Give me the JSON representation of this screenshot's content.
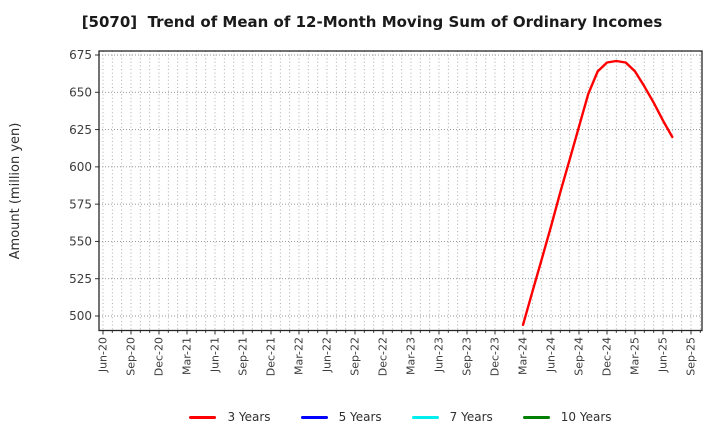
{
  "title": "[5070]  Trend of Mean of 12-Month Moving Sum of Ordinary Incomes",
  "colors": {
    "background": "#ffffff",
    "plot_border": "#262626",
    "grid": "#9a9a9a",
    "tick_text": "#3d3d3d",
    "series_3yr": "#ff0000",
    "series_5yr": "#0000ff",
    "series_7yr": "#00eeee",
    "series_10yr": "#008000"
  },
  "chart_data": {
    "type": "line",
    "title": "[5070]  Trend of Mean of 12-Month Moving Sum of Ordinary Incomes",
    "xlabel": "",
    "ylabel": "Amount (million yen)",
    "ylim": [
      489,
      678
    ],
    "yticks": [
      500,
      525,
      550,
      575,
      600,
      625,
      650,
      675
    ],
    "x_tick_labels": [
      "Jun-20",
      "Sep-20",
      "Dec-20",
      "Mar-21",
      "Jun-21",
      "Sep-21",
      "Dec-21",
      "Mar-22",
      "Jun-22",
      "Sep-22",
      "Dec-22",
      "Mar-23",
      "Jun-23",
      "Sep-23",
      "Dec-23",
      "Mar-24",
      "Jun-24",
      "Sep-24",
      "Dec-24",
      "Mar-25",
      "Jun-25",
      "Sep-25"
    ],
    "x_tick_interval_months": 3,
    "grid": true,
    "legend_position": "bottom",
    "series": [
      {
        "name": "3 Years",
        "color": "#ff0000",
        "start_month_index": 45,
        "x": [
          "Mar-24",
          "Apr-24",
          "May-24",
          "Jun-24",
          "Jul-24",
          "Aug-24",
          "Sep-24",
          "Oct-24",
          "Nov-24",
          "Dec-24",
          "Jan-25",
          "Feb-25",
          "Mar-25",
          "Apr-25",
          "May-25",
          "Jun-25",
          "Jul-25"
        ],
        "values": [
          494,
          516,
          538,
          560,
          583,
          605,
          627,
          649,
          664,
          670,
          671,
          670,
          664,
          654,
          643,
          631,
          620
        ]
      },
      {
        "name": "5 Years",
        "color": "#0000ff",
        "start_month_index": 0,
        "x": [],
        "values": []
      },
      {
        "name": "7 Years",
        "color": "#00eeee",
        "start_month_index": 0,
        "x": [],
        "values": []
      },
      {
        "name": "10 Years",
        "color": "#008000",
        "start_month_index": 0,
        "x": [],
        "values": []
      }
    ]
  }
}
